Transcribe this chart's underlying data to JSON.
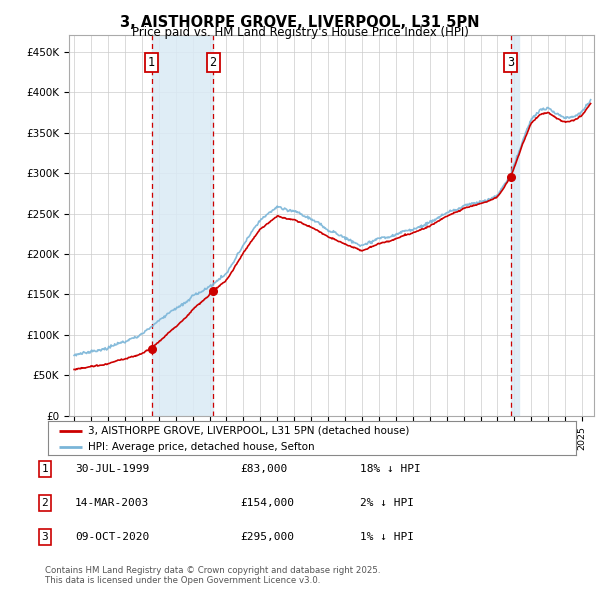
{
  "title": "3, AISTHORPE GROVE, LIVERPOOL, L31 5PN",
  "subtitle": "Price paid vs. HM Land Registry's House Price Index (HPI)",
  "sale_prices": [
    83000,
    154000,
    295000
  ],
  "sale_labels": [
    "1",
    "2",
    "3"
  ],
  "hpi_color": "#7ab5d8",
  "price_color": "#cc0000",
  "vline_color": "#cc0000",
  "vshade_color": "#daeaf5",
  "background_color": "#ffffff",
  "grid_color": "#cccccc",
  "ylim": [
    0,
    470000
  ],
  "yticks": [
    0,
    50000,
    100000,
    150000,
    200000,
    250000,
    300000,
    350000,
    400000,
    450000
  ],
  "ytick_labels": [
    "£0",
    "£50K",
    "£100K",
    "£150K",
    "£200K",
    "£250K",
    "£300K",
    "£350K",
    "£400K",
    "£450K"
  ],
  "xlim_start": 1994.7,
  "xlim_end": 2025.7,
  "legend_line1": "3, AISTHORPE GROVE, LIVERPOOL, L31 5PN (detached house)",
  "legend_line2": "HPI: Average price, detached house, Sefton",
  "table_rows": [
    {
      "num": "1",
      "date": "30-JUL-1999",
      "price": "£83,000",
      "hpi": "18% ↓ HPI"
    },
    {
      "num": "2",
      "date": "14-MAR-2003",
      "price": "£154,000",
      "hpi": "2% ↓ HPI"
    },
    {
      "num": "3",
      "date": "09-OCT-2020",
      "price": "£295,000",
      "hpi": "1% ↓ HPI"
    }
  ],
  "footnote": "Contains HM Land Registry data © Crown copyright and database right 2025.\nThis data is licensed under the Open Government Licence v3.0.",
  "sale_years": [
    1999.58,
    2003.21,
    2020.77
  ]
}
